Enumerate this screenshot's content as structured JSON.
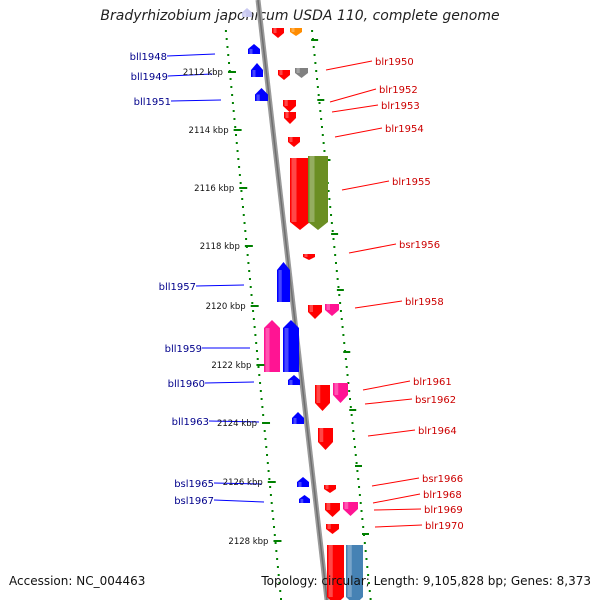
{
  "title": "Bradyrhizobium japonicum USDA 110, complete genome",
  "footer": {
    "accession": "Accession: NC_004463",
    "topology": "Topology: circular; Length: 9,105,828 bp; Genes: 8,373"
  },
  "colors": {
    "forward": "#ff0000",
    "reverse": "#0000ff",
    "pink": "#ff1493",
    "olive": "#6b8e23",
    "steel": "#4682b4",
    "orange": "#ff8c00",
    "gray": "#808080",
    "ticks": "#008000",
    "right_label": "#cc0000",
    "left_label": "#00008b"
  },
  "ticks": [
    "2112 kbp",
    "2114 kbp",
    "2116 kbp",
    "2118 kbp",
    "2120 kbp",
    "2122 kbp",
    "2124 kbp",
    "2126 kbp",
    "2128 kbp"
  ],
  "left_genes": [
    "bll1948",
    "bll1949",
    "bll1951",
    "bll1957",
    "bll1959",
    "bll1960",
    "bll1963",
    "bsl1965",
    "bsl1967"
  ],
  "right_genes": [
    "blr1950",
    "blr1952",
    "blr1953",
    "blr1954",
    "blr1955",
    "bsr1956",
    "blr1958",
    "blr1961",
    "bsr1962",
    "blr1964",
    "bsr1966",
    "blr1968",
    "blr1969",
    "blr1970"
  ]
}
